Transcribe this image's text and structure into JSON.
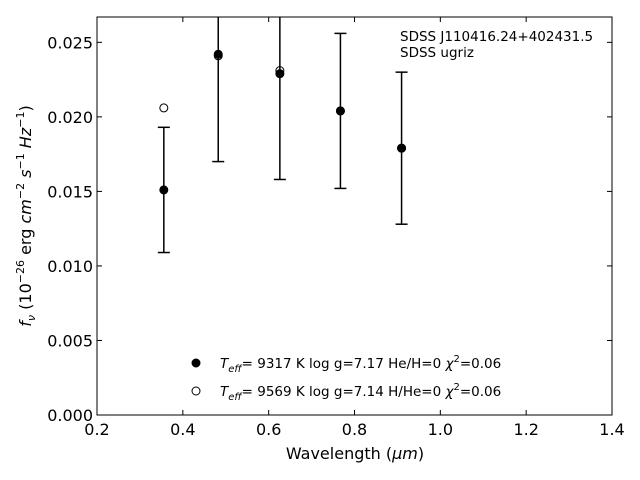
{
  "chart_data": {
    "type": "scatter",
    "title": "",
    "object_name": "SDSS J110416.24+402431.5",
    "photometry": "SDSS ugriz",
    "xlabel": "Wavelength",
    "xunit": "μm",
    "ylabel_main": "f",
    "ylabel_sub": "ν",
    "ylabel_units_text": " erg ",
    "xlim": [
      0.2,
      1.4
    ],
    "ylim": [
      0.0,
      0.0267
    ],
    "xticks": [
      0.2,
      0.4,
      0.6,
      0.8,
      1.0,
      1.2,
      1.4
    ],
    "xtick_labels": [
      "0.2",
      "0.4",
      "0.6",
      "0.8",
      "1.0",
      "1.2",
      "1.4"
    ],
    "yticks": [
      0.0,
      0.005,
      0.01,
      0.015,
      0.02,
      0.025
    ],
    "ytick_labels": [
      "0.000",
      "0.005",
      "0.010",
      "0.015",
      "0.020",
      "0.025"
    ],
    "grid": false,
    "legend_position": "bottom-center",
    "observed": {
      "x": [
        0.3557,
        0.4825,
        0.6261,
        0.7672,
        0.9097
      ],
      "y": [
        0.0151,
        0.0243,
        0.023,
        0.0204,
        0.0179
      ],
      "yerr": [
        0.0042,
        0.0073,
        0.0072,
        0.0052,
        0.0051
      ]
    },
    "series": [
      {
        "name": "He/H=0",
        "marker": "filled-circle",
        "teff_label": "T",
        "teff_sub": "eff",
        "teff_value": "=  9317 K",
        "logg": "log g=7.17",
        "composition": "He/H=0",
        "chi_symbol": "χ",
        "chi_exp": "2",
        "chi_value": "=0.06",
        "x": [
          0.3557,
          0.4825,
          0.6261,
          0.7672,
          0.9097
        ],
        "y": [
          0.0151,
          0.0242,
          0.0229,
          0.0204,
          0.0179
        ]
      },
      {
        "name": "H/He=0",
        "marker": "open-circle",
        "teff_label": "T",
        "teff_sub": "eff",
        "teff_value": "=  9569 K",
        "logg": "log g=7.14",
        "composition": "H/He=0",
        "chi_symbol": "χ",
        "chi_exp": "2",
        "chi_value": "=0.06",
        "x": [
          0.3557,
          0.4825,
          0.6261,
          0.7672,
          0.9097
        ],
        "y": [
          0.0206,
          0.0241,
          0.0231,
          0.0204,
          0.0179
        ]
      }
    ]
  }
}
